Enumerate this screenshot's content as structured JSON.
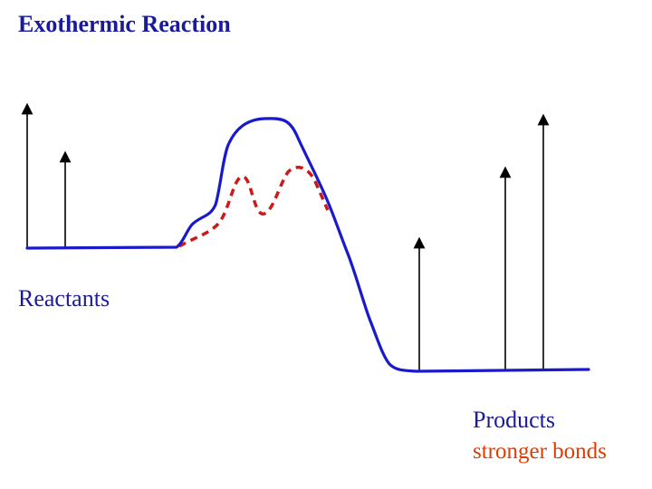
{
  "title": "Exothermic Reaction",
  "labels": {
    "reactants": "Reactants",
    "products": "Products",
    "products_note": "stronger bonds"
  },
  "colors": {
    "curve": "#1a1acc",
    "catalyzed_curve": "#cc1a1a",
    "text": "#1b1b9a",
    "highlight_text": "#e03b00",
    "arrow": "#000000"
  }
}
